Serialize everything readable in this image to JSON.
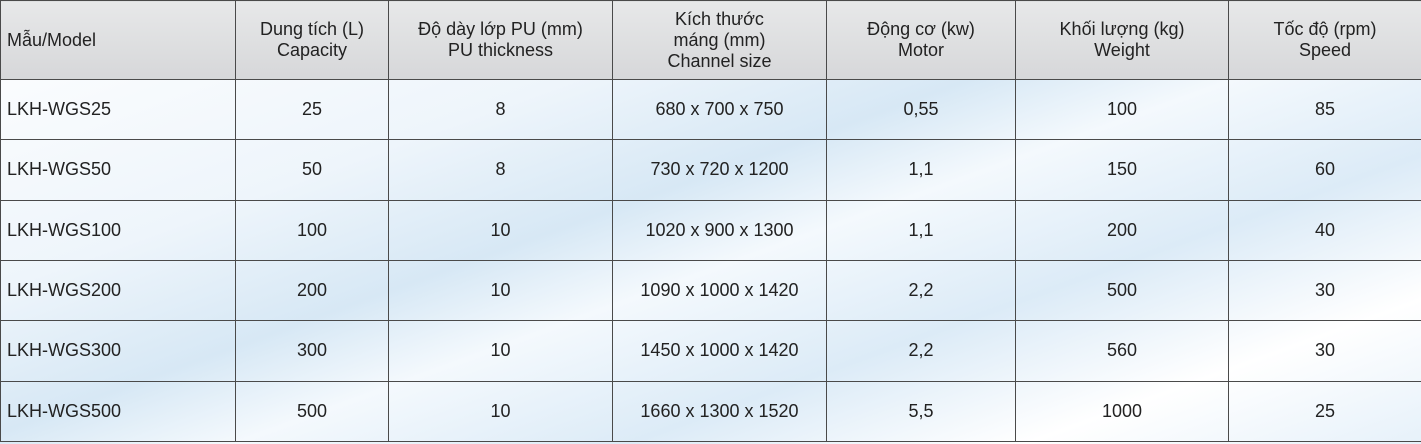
{
  "table": {
    "headers": [
      [
        "Mẫu/Model"
      ],
      [
        "Dung tích (L)",
        "Capacity"
      ],
      [
        "Độ dày lớp PU (mm)",
        "PU thickness"
      ],
      [
        "Kích thước",
        "máng (mm)",
        "Channel size"
      ],
      [
        "Động cơ (kw)",
        "Motor"
      ],
      [
        "Khối lượng (kg)",
        "Weight"
      ],
      [
        "Tốc độ (rpm)",
        "Speed"
      ]
    ],
    "rows": [
      [
        "LKH-WGS25",
        "25",
        "8",
        "680 x 700 x 750",
        "0,55",
        "100",
        "85"
      ],
      [
        "LKH-WGS50",
        "50",
        "8",
        "730 x 720 x 1200",
        "1,1",
        "150",
        "60"
      ],
      [
        "LKH-WGS100",
        "100",
        "10",
        "1020 x 900 x 1300",
        "1,1",
        "200",
        "40"
      ],
      [
        "LKH-WGS200",
        "200",
        "10",
        "1090 x 1000 x 1420",
        "2,2",
        "500",
        "30"
      ],
      [
        "LKH-WGS300",
        "300",
        "10",
        "1450 x 1000 x 1420",
        "2,2",
        "560",
        "30"
      ],
      [
        "LKH-WGS500",
        "500",
        "10",
        "1660 x 1300 x 1520",
        "5,5",
        "1000",
        "25"
      ]
    ]
  }
}
